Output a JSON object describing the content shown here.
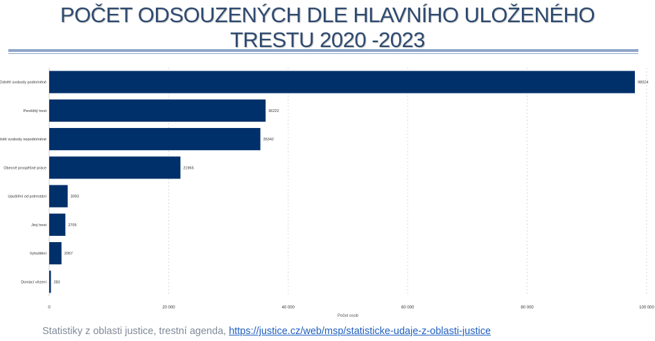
{
  "title_lines": [
    "POČET ODSOUZENÝCH DLE HLAVNÍHO ULOŽENÉHO",
    "TRESTU 2020 -2023"
  ],
  "colors": {
    "title": "#2E4A6F",
    "bar": "#00306A",
    "rule": "#8FA6C9",
    "link": "#1F5FBF"
  },
  "chart_data": {
    "type": "bar",
    "orientation": "horizontal",
    "categories": [
      "Odnětí svobody podmíněné",
      "Peněžitý trest",
      "Odnětí svobody nepodmíněné",
      "Obecně prospěšné práce",
      "Upuštění od potrestání",
      "Jiný trest",
      "Vyhoštění",
      "Domácí vězení"
    ],
    "values": [
      98024,
      36222,
      35342,
      21965,
      3093,
      2705,
      2057,
      283
    ],
    "xlabel": "Počet osob",
    "xlim": [
      0,
      100000
    ],
    "xticks": [
      0,
      20000,
      40000,
      60000,
      80000,
      100000
    ],
    "xtick_labels": [
      "0",
      "20 000",
      "40 000",
      "60 000",
      "80 000",
      "100 000"
    ],
    "grid": true
  },
  "footer": {
    "text": "Statistiky z oblasti justice, trestní agenda, ",
    "link": "https://justice.cz/web/msp/statisticke-udaje-z-oblasti-justice"
  }
}
